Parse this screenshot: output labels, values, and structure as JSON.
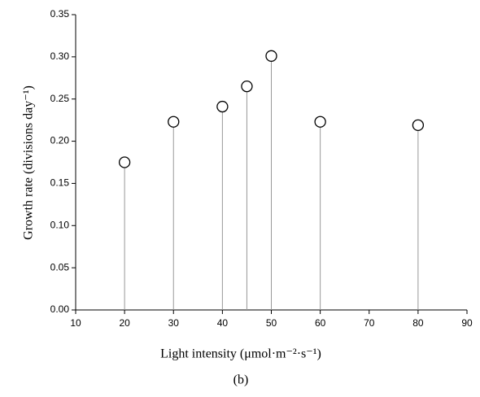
{
  "chart_data": {
    "type": "stem",
    "x_label": "Light intensity (μmol·m⁻²·s⁻¹)",
    "y_label": "Growth rate (divisions day⁻¹)",
    "caption": "(b)",
    "x": [
      20,
      30,
      40,
      45,
      50,
      60,
      80
    ],
    "values": [
      0.175,
      0.223,
      0.241,
      0.265,
      0.301,
      0.223,
      0.219
    ],
    "xlim": [
      10,
      90
    ],
    "xticks": [
      10,
      20,
      30,
      40,
      50,
      60,
      70,
      80,
      90
    ],
    "ylim": [
      0,
      0.35
    ],
    "yticks": [
      {
        "value": 0,
        "label": "0.00"
      },
      {
        "value": 0.05,
        "label": "0.05"
      },
      {
        "value": 0.1,
        "label": "0.10"
      },
      {
        "value": 0.15,
        "label": "0.15"
      },
      {
        "value": 0.2,
        "label": "0.20"
      },
      {
        "value": 0.25,
        "label": "0.25"
      },
      {
        "value": 0.3,
        "label": "0.30"
      },
      {
        "value": 0.35,
        "label": "0.35"
      }
    ],
    "marker_color": "#000000",
    "stem_color": "#999999"
  }
}
